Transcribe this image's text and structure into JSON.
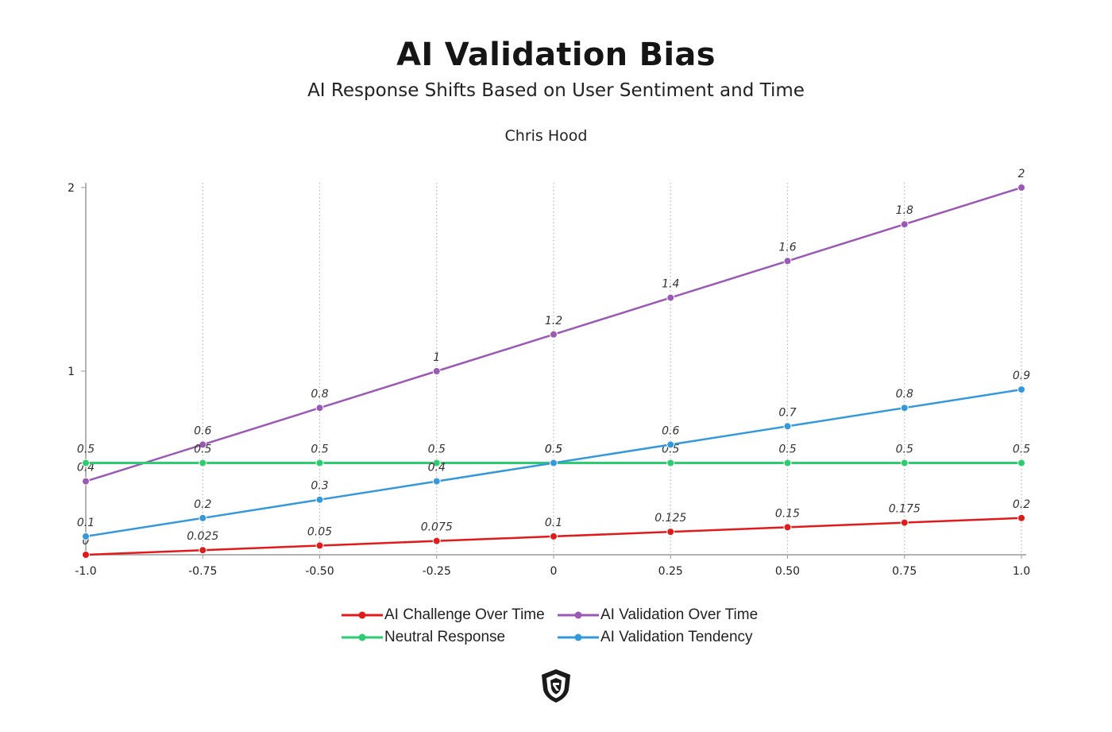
{
  "header": {
    "title": "AI Validation Bias",
    "subtitle": "AI Response Shifts Based on User Sentiment and Time",
    "author": "Chris Hood"
  },
  "chart_data": {
    "type": "line",
    "x": [
      -1.0,
      -0.75,
      -0.5,
      -0.25,
      0,
      0.25,
      0.5,
      0.75,
      1.0
    ],
    "x_tick_labels": [
      "-1.0",
      "-0.75",
      "-0.50",
      "-0.25",
      "0",
      "0.25",
      "0.50",
      "0.75",
      "1.0"
    ],
    "y_ticks": [
      1,
      2
    ],
    "xlim": [
      -1.0,
      1.0
    ],
    "ylim": [
      0,
      2
    ],
    "grid": "vertical dotted",
    "legend_position": "bottom",
    "series": [
      {
        "name": "AI Challenge Over Time",
        "color": "#e01b1b",
        "values": [
          0,
          0.025,
          0.05,
          0.075,
          0.1,
          0.125,
          0.15,
          0.175,
          0.2
        ]
      },
      {
        "name": "AI Validation Over Time",
        "color": "#9b59b6",
        "values": [
          0.4,
          0.6,
          0.8,
          1,
          1.2,
          1.4,
          1.6,
          1.8,
          2
        ]
      },
      {
        "name": "Neutral Response",
        "color": "#2ecc71",
        "values": [
          0.5,
          0.5,
          0.5,
          0.5,
          0.5,
          0.5,
          0.5,
          0.5,
          0.5
        ]
      },
      {
        "name": "AI Validation Tendency",
        "color": "#3498db",
        "values": [
          0.1,
          0.2,
          0.3,
          0.4,
          0.5,
          0.6,
          0.7,
          0.8,
          0.9
        ]
      }
    ]
  },
  "logo": {
    "icon": "shield-logo-icon"
  }
}
